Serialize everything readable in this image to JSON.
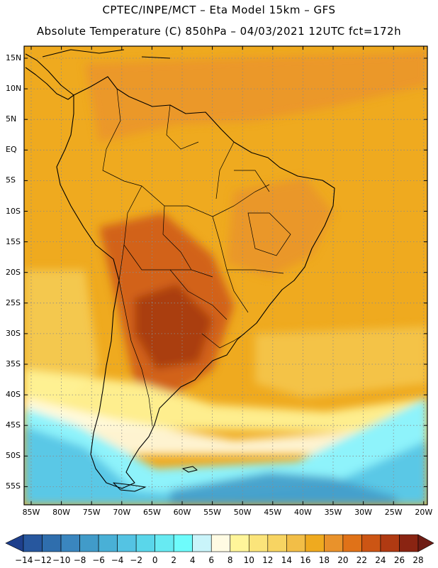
{
  "header": {
    "line1": "CPTEC/INPE/MCT –  Eta Model 15km – GFS",
    "line2": "Absolute Temperature (C) 850hPa – 04/03/2021 12UTC fct=172h"
  },
  "axes": {
    "lat_labels": [
      "15N",
      "10N",
      "5N",
      "EQ",
      "5S",
      "10S",
      "15S",
      "20S",
      "25S",
      "30S",
      "35S",
      "40S",
      "45S",
      "50S",
      "55S"
    ],
    "lon_labels": [
      "85W",
      "80W",
      "75W",
      "70W",
      "65W",
      "60W",
      "55W",
      "50W",
      "45W",
      "40W",
      "35W",
      "30W",
      "25W",
      "20W"
    ]
  },
  "colorbar": {
    "labels": [
      "-14",
      "-12",
      "-10",
      "-8",
      "-6",
      "-4",
      "-2",
      "0",
      "2",
      "4",
      "6",
      "8",
      "10",
      "12",
      "14",
      "16",
      "18",
      "20",
      "22",
      "24",
      "26",
      "28"
    ],
    "colors": [
      "#1e3f8c",
      "#27579e",
      "#2f6ead",
      "#3a86bf",
      "#419bc9",
      "#49b0d6",
      "#54c3e3",
      "#5ad6ea",
      "#67eaf2",
      "#6efcfc",
      "#c9f4fa",
      "#fffbe3",
      "#fff59a",
      "#fbe47a",
      "#f7d462",
      "#f2be47",
      "#efaa1f",
      "#e9922b",
      "#e07218",
      "#cc5514",
      "#b03a12",
      "#8a2412",
      "#6e1c14"
    ]
  },
  "legend_colors": {
    "cold_deep": "#1e3f8c",
    "cold": "#49b0d6",
    "cool": "#8ef3fb",
    "mild": "#fffbe3",
    "warm": "#efaa1f",
    "hot": "#cc5514",
    "very_hot": "#8a2412"
  }
}
